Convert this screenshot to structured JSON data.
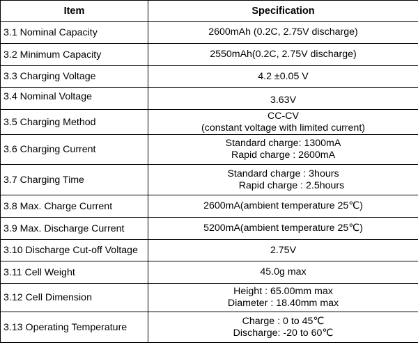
{
  "header": {
    "item": "Item",
    "specification": "Specification"
  },
  "rows": [
    {
      "item": "3.1 Nominal Capacity",
      "spec": [
        "2600mAh (0.2C, 2.75V discharge)"
      ]
    },
    {
      "item": "3.2 Minimum Capacity",
      "spec": [
        "2550mAh(0.2C, 2.75V discharge)"
      ]
    },
    {
      "item": "3.3 Charging Voltage",
      "spec": [
        "4.2 ±0.05 V"
      ]
    },
    {
      "item": "3.4 Nominal Voltage",
      "spec": [
        "3.63V"
      ]
    },
    {
      "item": "3.5 Charging Method",
      "spec": [
        "CC-CV",
        "(constant voltage with limited current)"
      ]
    },
    {
      "item": "3.6 Charging Current",
      "spec": [
        "Standard charge: 1300mA",
        "Rapid charge : 2600mA"
      ]
    },
    {
      "item": "3.7 Charging Time",
      "spec": [
        "Standard charge : 3hours",
        "Rapid charge : 2.5hours"
      ]
    },
    {
      "item": "3.8 Max. Charge Current",
      "spec": [
        "2600mA(ambient temperature 25℃)"
      ]
    },
    {
      "item": "3.9 Max. Discharge Current",
      "spec": [
        "5200mA(ambient temperature 25℃)"
      ]
    },
    {
      "item": "3.10 Discharge Cut-off Voltage",
      "spec": [
        "2.75V"
      ]
    },
    {
      "item": "3.11 Cell Weight",
      "spec": [
        "45.0g max"
      ]
    },
    {
      "item": "3.12 Cell Dimension",
      "spec": [
        "Height : 65.00mm max",
        "Diameter : 18.40mm max"
      ]
    },
    {
      "item": "3.13 Operating Temperature",
      "spec": [
        "Charge : 0 to 45℃",
        "Discharge: -20 to 60℃"
      ]
    }
  ]
}
